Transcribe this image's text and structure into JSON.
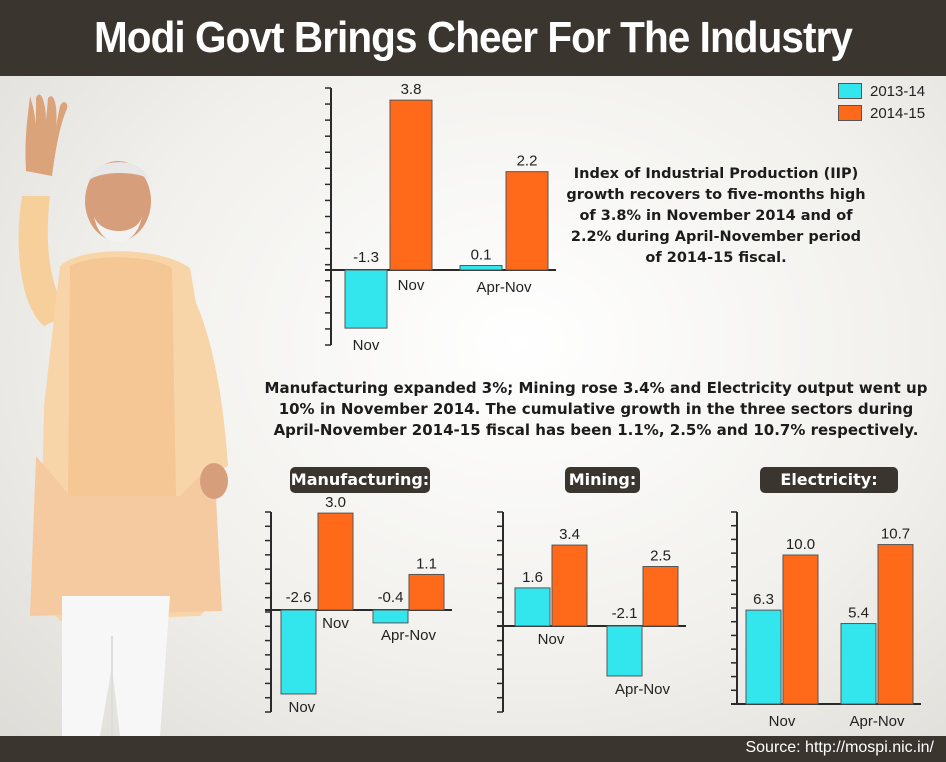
{
  "title": "Modi Govt Brings Cheer For The Industry",
  "source": "Source: http://mospi.nic.in/",
  "colors": {
    "y2013": "#33e6ee",
    "y2014": "#ff6a1a",
    "dark": "#3b3530"
  },
  "legend": [
    {
      "label": "2013-14",
      "color": "#33e6ee"
    },
    {
      "label": "2014-15",
      "color": "#ff6a1a"
    }
  ],
  "iip_note": "Index of Industrial Production (IIP) growth recovers to five-months high of 3.8% in November 2014 and of 2.2% during April-November period of 2014-15 fiscal.",
  "sector_note": "Manufacturing expanded 3%; Mining rose 3.4% and Electricity output went up 10% in November 2014. The cumulative growth in the three sectors during April-November 2014-15 fiscal has been 1.1%, 2.5% and 10.7% respectively.",
  "chart_data": [
    {
      "type": "bar",
      "id": "iip",
      "title": "",
      "categories": [
        "Nov",
        "Apr-Nov"
      ],
      "series": [
        {
          "name": "2013-14",
          "values": [
            -1.3,
            0.1
          ],
          "labels": [
            "-1.3",
            "0.1"
          ]
        },
        {
          "name": "2014-15",
          "values": [
            3.8,
            2.2
          ],
          "labels": [
            "3.8",
            "2.2"
          ]
        }
      ]
    },
    {
      "type": "bar",
      "id": "manufacturing",
      "title": "Manufacturing:",
      "categories": [
        "Nov",
        "Apr-Nov"
      ],
      "series": [
        {
          "name": "2013-14",
          "values": [
            -2.6,
            -0.4
          ],
          "labels": [
            "-2.6",
            "-0.4"
          ]
        },
        {
          "name": "2014-15",
          "values": [
            3.0,
            1.1
          ],
          "labels": [
            "3.0",
            "1.1"
          ]
        }
      ]
    },
    {
      "type": "bar",
      "id": "mining",
      "title": "Mining:",
      "categories": [
        "Nov",
        "Apr-Nov"
      ],
      "series": [
        {
          "name": "2013-14",
          "values": [
            1.6,
            -2.1
          ],
          "labels": [
            "1.6",
            "-2.1"
          ]
        },
        {
          "name": "2014-15",
          "values": [
            3.4,
            2.5
          ],
          "labels": [
            "3.4",
            "2.5"
          ]
        }
      ]
    },
    {
      "type": "bar",
      "id": "electricity",
      "title": "Electricity:",
      "categories": [
        "Nov",
        "Apr-Nov"
      ],
      "series": [
        {
          "name": "2013-14",
          "values": [
            6.3,
            5.4
          ],
          "labels": [
            "6.3",
            "5.4"
          ]
        },
        {
          "name": "2014-15",
          "values": [
            10.0,
            10.7
          ],
          "labels": [
            "10.0",
            "10.7"
          ]
        }
      ]
    }
  ]
}
